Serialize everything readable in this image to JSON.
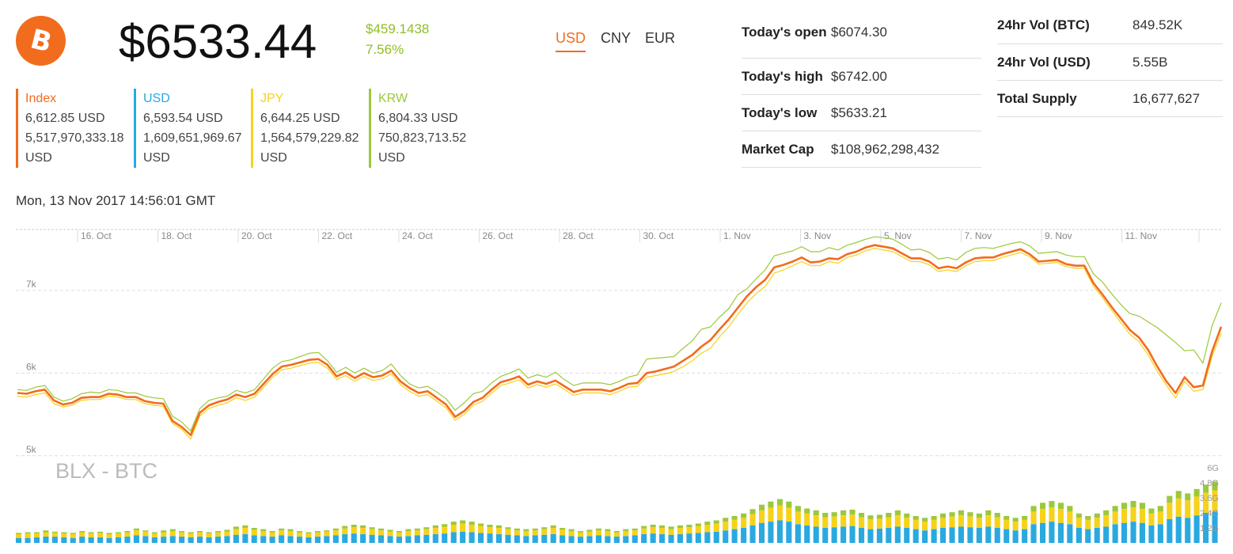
{
  "logo": {
    "glyph": "B",
    "color": "#f26c1d"
  },
  "header": {
    "price": "$6533.44",
    "change_abs": "$459.1438",
    "change_pct": "7.56%",
    "currencies": [
      "USD",
      "CNY",
      "EUR"
    ],
    "active_currency": "USD"
  },
  "exchanges": [
    {
      "name": "Index",
      "color": "#f26c1d",
      "price": "6,612.85 USD",
      "vol1": "5,517,970,333.18",
      "vol2": "USD"
    },
    {
      "name": "USD",
      "color": "#2aa9e0",
      "price": "6,593.54 USD",
      "vol1": "1,609,651,969.67",
      "vol2": "USD"
    },
    {
      "name": "JPY",
      "color": "#f7d21b",
      "price": "6,644.25 USD",
      "vol1": "1,564,579,229.82",
      "vol2": "USD"
    },
    {
      "name": "KRW",
      "color": "#9cc83b",
      "price": "6,804.33 USD",
      "vol1": "750,823,713.52",
      "vol2": "USD"
    }
  ],
  "stats_left": [
    {
      "label": "Today's open",
      "value": "$6074.30"
    },
    {
      "label": "Today's high",
      "value": "$6742.00"
    },
    {
      "label": "Today's low",
      "value": "$5633.21"
    },
    {
      "label": "Market Cap",
      "value": "$108,962,298,432"
    }
  ],
  "stats_right": [
    {
      "label": "24hr Vol (BTC)",
      "value": "849.52K"
    },
    {
      "label": "24hr Vol (USD)",
      "value": "5.55B"
    },
    {
      "label": "Total Supply",
      "value": "16,677,627"
    }
  ],
  "timestamp": "Mon, 13 Nov 2017 14:56:01 GMT",
  "chart_data": {
    "type": "line",
    "watermark": "BLX - BTC",
    "x_tick_labels": [
      "16. Oct",
      "18. Oct",
      "20. Oct",
      "22. Oct",
      "24. Oct",
      "26. Oct",
      "28. Oct",
      "30. Oct",
      "1. Nov",
      "3. Nov",
      "5. Nov",
      "7. Nov",
      "9. Nov",
      "11. Nov"
    ],
    "y_tick_labels": [
      "5k",
      "6k",
      "7k"
    ],
    "ylim": [
      4950,
      7700
    ],
    "volume_tick_labels": [
      "1.2G",
      "2.4G",
      "3.6G",
      "4.8G",
      "6G"
    ],
    "volume_ylim": [
      0,
      6
    ],
    "grid": true,
    "series": [
      {
        "name": "KRW",
        "color": "#9cc83b",
        "values": [
          5800,
          5790,
          5830,
          5850,
          5710,
          5660,
          5690,
          5750,
          5770,
          5760,
          5800,
          5790,
          5760,
          5760,
          5720,
          5700,
          5690,
          5480,
          5410,
          5300,
          5570,
          5670,
          5700,
          5720,
          5790,
          5760,
          5800,
          5930,
          6060,
          6140,
          6160,
          6200,
          6240,
          6250,
          6150,
          6010,
          6070,
          6000,
          6060,
          6000,
          6030,
          6110,
          5970,
          5870,
          5820,
          5840,
          5770,
          5690,
          5550,
          5640,
          5750,
          5780,
          5880,
          5960,
          6000,
          6050,
          5940,
          5980,
          5950,
          6010,
          5920,
          5850,
          5880,
          5880,
          5880,
          5860,
          5900,
          5950,
          5980,
          6170,
          6180,
          6190,
          6200,
          6300,
          6390,
          6530,
          6560,
          6680,
          6780,
          6950,
          7020,
          7140,
          7250,
          7420,
          7450,
          7480,
          7530,
          7470,
          7470,
          7520,
          7490,
          7550,
          7580,
          7620,
          7650,
          7640,
          7620,
          7560,
          7490,
          7500,
          7460,
          7380,
          7400,
          7370,
          7460,
          7510,
          7520,
          7510,
          7540,
          7570,
          7590,
          7540,
          7450,
          7460,
          7470,
          7430,
          7410,
          7410,
          7200,
          7100,
          6960,
          6830,
          6720,
          6690,
          6620,
          6550,
          6460,
          6370,
          6270,
          6280,
          6120,
          6570,
          6850
        ]
      },
      {
        "name": "JPY",
        "color": "#f7d21b",
        "values": [
          5720,
          5710,
          5740,
          5760,
          5630,
          5590,
          5610,
          5670,
          5680,
          5680,
          5720,
          5710,
          5680,
          5680,
          5630,
          5610,
          5600,
          5390,
          5320,
          5200,
          5480,
          5570,
          5610,
          5640,
          5700,
          5670,
          5710,
          5830,
          5950,
          6040,
          6060,
          6090,
          6120,
          6130,
          6060,
          5920,
          5970,
          5900,
          5960,
          5910,
          5930,
          5990,
          5860,
          5780,
          5720,
          5740,
          5660,
          5580,
          5430,
          5500,
          5610,
          5660,
          5760,
          5850,
          5880,
          5920,
          5820,
          5860,
          5830,
          5870,
          5800,
          5730,
          5760,
          5760,
          5760,
          5740,
          5780,
          5830,
          5840,
          5950,
          5970,
          5990,
          6020,
          6080,
          6150,
          6240,
          6300,
          6440,
          6560,
          6710,
          6850,
          6960,
          7050,
          7210,
          7250,
          7300,
          7350,
          7300,
          7300,
          7350,
          7330,
          7400,
          7430,
          7480,
          7510,
          7490,
          7470,
          7410,
          7350,
          7350,
          7310,
          7230,
          7250,
          7230,
          7300,
          7350,
          7360,
          7360,
          7400,
          7430,
          7460,
          7410,
          7320,
          7330,
          7340,
          7290,
          7270,
          7270,
          7050,
          6910,
          6760,
          6610,
          6470,
          6380,
          6220,
          6020,
          5850,
          5700,
          5900,
          5780,
          5800,
          6200,
          6480
        ]
      },
      {
        "name": "Index",
        "color": "#f26c1d",
        "values": [
          5760,
          5750,
          5780,
          5800,
          5670,
          5620,
          5640,
          5700,
          5710,
          5710,
          5750,
          5740,
          5710,
          5710,
          5660,
          5640,
          5630,
          5420,
          5350,
          5250,
          5520,
          5610,
          5650,
          5680,
          5740,
          5710,
          5750,
          5870,
          5990,
          6080,
          6100,
          6130,
          6160,
          6170,
          6100,
          5960,
          6010,
          5940,
          6000,
          5950,
          5970,
          6030,
          5900,
          5820,
          5760,
          5780,
          5700,
          5620,
          5470,
          5540,
          5650,
          5700,
          5800,
          5890,
          5920,
          5960,
          5860,
          5900,
          5870,
          5910,
          5840,
          5770,
          5800,
          5800,
          5800,
          5780,
          5820,
          5870,
          5880,
          6000,
          6020,
          6050,
          6080,
          6150,
          6220,
          6320,
          6400,
          6530,
          6650,
          6790,
          6930,
          7040,
          7130,
          7280,
          7310,
          7350,
          7400,
          7340,
          7350,
          7390,
          7380,
          7440,
          7470,
          7520,
          7550,
          7530,
          7510,
          7450,
          7390,
          7390,
          7350,
          7270,
          7290,
          7270,
          7340,
          7390,
          7400,
          7400,
          7440,
          7470,
          7500,
          7440,
          7350,
          7360,
          7370,
          7320,
          7300,
          7300,
          7090,
          6950,
          6800,
          6660,
          6520,
          6430,
          6280,
          6080,
          5900,
          5760,
          5950,
          5830,
          5850,
          6260,
          6560
        ]
      }
    ],
    "volume": {
      "colors": {
        "usd": "#2aa9e0",
        "jpy": "#f7d21b",
        "krw": "#9cc83b"
      },
      "bars": [
        [
          0.4,
          0.3,
          0.1
        ],
        [
          0.4,
          0.35,
          0.1
        ],
        [
          0.45,
          0.3,
          0.1
        ],
        [
          0.5,
          0.35,
          0.15
        ],
        [
          0.5,
          0.3,
          0.1
        ],
        [
          0.45,
          0.3,
          0.1
        ],
        [
          0.4,
          0.3,
          0.1
        ],
        [
          0.5,
          0.35,
          0.1
        ],
        [
          0.45,
          0.3,
          0.1
        ],
        [
          0.45,
          0.35,
          0.1
        ],
        [
          0.4,
          0.3,
          0.1
        ],
        [
          0.45,
          0.3,
          0.1
        ],
        [
          0.5,
          0.35,
          0.1
        ],
        [
          0.6,
          0.4,
          0.15
        ],
        [
          0.55,
          0.35,
          0.1
        ],
        [
          0.45,
          0.3,
          0.1
        ],
        [
          0.5,
          0.35,
          0.15
        ],
        [
          0.55,
          0.4,
          0.15
        ],
        [
          0.5,
          0.35,
          0.1
        ],
        [
          0.45,
          0.3,
          0.1
        ],
        [
          0.5,
          0.35,
          0.1
        ],
        [
          0.45,
          0.3,
          0.1
        ],
        [
          0.5,
          0.35,
          0.1
        ],
        [
          0.55,
          0.35,
          0.15
        ],
        [
          0.65,
          0.45,
          0.2
        ],
        [
          0.7,
          0.5,
          0.2
        ],
        [
          0.6,
          0.45,
          0.15
        ],
        [
          0.55,
          0.4,
          0.15
        ],
        [
          0.5,
          0.35,
          0.1
        ],
        [
          0.6,
          0.4,
          0.15
        ],
        [
          0.55,
          0.4,
          0.15
        ],
        [
          0.5,
          0.35,
          0.1
        ],
        [
          0.45,
          0.3,
          0.1
        ],
        [
          0.5,
          0.35,
          0.1
        ],
        [
          0.55,
          0.35,
          0.1
        ],
        [
          0.6,
          0.4,
          0.15
        ],
        [
          0.7,
          0.45,
          0.2
        ],
        [
          0.75,
          0.5,
          0.2
        ],
        [
          0.7,
          0.5,
          0.2
        ],
        [
          0.65,
          0.45,
          0.15
        ],
        [
          0.6,
          0.4,
          0.15
        ],
        [
          0.55,
          0.35,
          0.15
        ],
        [
          0.5,
          0.35,
          0.1
        ],
        [
          0.55,
          0.4,
          0.15
        ],
        [
          0.6,
          0.4,
          0.15
        ],
        [
          0.65,
          0.45,
          0.15
        ],
        [
          0.7,
          0.5,
          0.2
        ],
        [
          0.75,
          0.55,
          0.2
        ],
        [
          0.85,
          0.6,
          0.25
        ],
        [
          0.9,
          0.65,
          0.25
        ],
        [
          0.85,
          0.6,
          0.25
        ],
        [
          0.8,
          0.55,
          0.2
        ],
        [
          0.75,
          0.5,
          0.2
        ],
        [
          0.7,
          0.5,
          0.2
        ],
        [
          0.65,
          0.45,
          0.15
        ],
        [
          0.6,
          0.4,
          0.15
        ],
        [
          0.55,
          0.4,
          0.15
        ],
        [
          0.6,
          0.4,
          0.15
        ],
        [
          0.65,
          0.45,
          0.15
        ],
        [
          0.7,
          0.5,
          0.2
        ],
        [
          0.6,
          0.45,
          0.15
        ],
        [
          0.55,
          0.4,
          0.15
        ],
        [
          0.5,
          0.35,
          0.1
        ],
        [
          0.55,
          0.35,
          0.15
        ],
        [
          0.6,
          0.4,
          0.15
        ],
        [
          0.55,
          0.4,
          0.15
        ],
        [
          0.5,
          0.35,
          0.1
        ],
        [
          0.55,
          0.4,
          0.15
        ],
        [
          0.6,
          0.4,
          0.15
        ],
        [
          0.7,
          0.45,
          0.2
        ],
        [
          0.75,
          0.5,
          0.2
        ],
        [
          0.7,
          0.5,
          0.2
        ],
        [
          0.65,
          0.45,
          0.2
        ],
        [
          0.7,
          0.5,
          0.2
        ],
        [
          0.75,
          0.5,
          0.2
        ],
        [
          0.8,
          0.55,
          0.2
        ],
        [
          0.85,
          0.6,
          0.25
        ],
        [
          0.9,
          0.65,
          0.25
        ],
        [
          1.0,
          0.7,
          0.3
        ],
        [
          1.1,
          0.75,
          0.3
        ],
        [
          1.2,
          0.8,
          0.35
        ],
        [
          1.4,
          0.9,
          0.4
        ],
        [
          1.6,
          1.0,
          0.45
        ],
        [
          1.7,
          1.1,
          0.5
        ],
        [
          1.8,
          1.2,
          0.5
        ],
        [
          1.7,
          1.1,
          0.5
        ],
        [
          1.5,
          1.0,
          0.45
        ],
        [
          1.4,
          0.95,
          0.4
        ],
        [
          1.3,
          0.9,
          0.4
        ],
        [
          1.2,
          0.85,
          0.35
        ],
        [
          1.25,
          0.85,
          0.35
        ],
        [
          1.3,
          0.9,
          0.4
        ],
        [
          1.35,
          0.9,
          0.4
        ],
        [
          1.2,
          0.85,
          0.35
        ],
        [
          1.1,
          0.8,
          0.3
        ],
        [
          1.15,
          0.8,
          0.3
        ],
        [
          1.2,
          0.85,
          0.35
        ],
        [
          1.3,
          0.9,
          0.4
        ],
        [
          1.2,
          0.8,
          0.35
        ],
        [
          1.1,
          0.75,
          0.3
        ],
        [
          1.0,
          0.7,
          0.3
        ],
        [
          1.1,
          0.75,
          0.3
        ],
        [
          1.2,
          0.8,
          0.35
        ],
        [
          1.25,
          0.85,
          0.35
        ],
        [
          1.3,
          0.9,
          0.4
        ],
        [
          1.25,
          0.85,
          0.35
        ],
        [
          1.2,
          0.8,
          0.35
        ],
        [
          1.3,
          0.9,
          0.4
        ],
        [
          1.2,
          0.85,
          0.35
        ],
        [
          1.1,
          0.75,
          0.3
        ],
        [
          1.0,
          0.7,
          0.3
        ],
        [
          1.1,
          0.75,
          0.3
        ],
        [
          1.5,
          1.0,
          0.45
        ],
        [
          1.6,
          1.1,
          0.5
        ],
        [
          1.7,
          1.15,
          0.5
        ],
        [
          1.6,
          1.1,
          0.5
        ],
        [
          1.5,
          1.0,
          0.45
        ],
        [
          1.2,
          0.8,
          0.35
        ],
        [
          1.1,
          0.75,
          0.3
        ],
        [
          1.2,
          0.8,
          0.35
        ],
        [
          1.3,
          0.9,
          0.4
        ],
        [
          1.5,
          1.0,
          0.45
        ],
        [
          1.6,
          1.1,
          0.5
        ],
        [
          1.7,
          1.15,
          0.5
        ],
        [
          1.6,
          1.1,
          0.5
        ],
        [
          1.4,
          0.95,
          0.4
        ],
        [
          1.5,
          1.0,
          0.45
        ],
        [
          1.9,
          1.3,
          0.55
        ],
        [
          2.1,
          1.45,
          0.6
        ],
        [
          2.0,
          1.4,
          0.55
        ],
        [
          2.2,
          1.5,
          0.6
        ],
        [
          2.4,
          1.6,
          0.65
        ],
        [
          2.5,
          1.7,
          0.7
        ]
      ]
    }
  }
}
